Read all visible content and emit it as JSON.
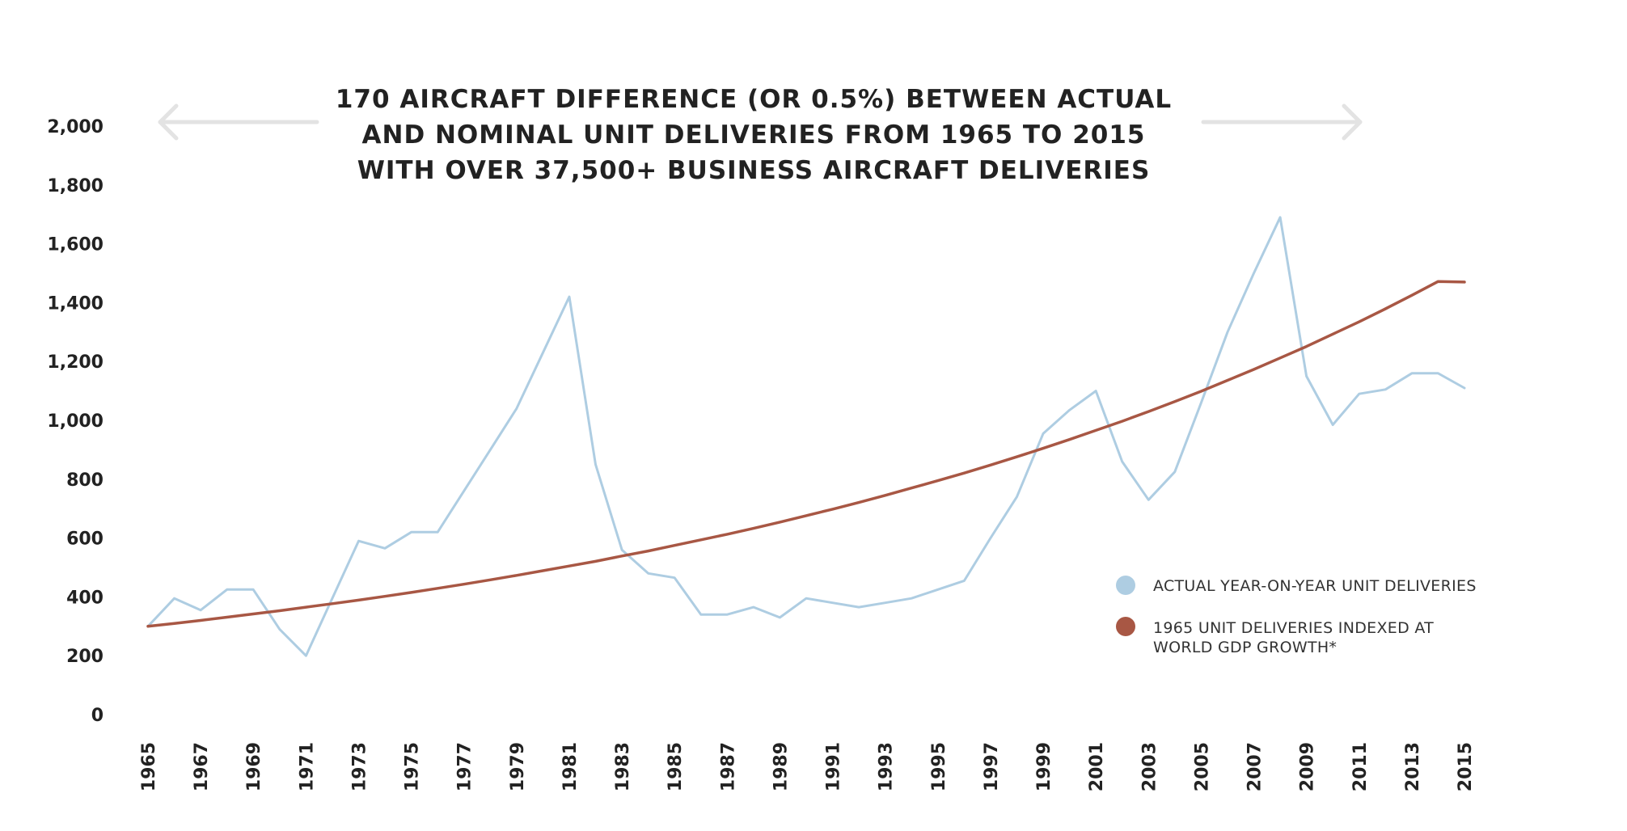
{
  "chart_data": {
    "type": "line",
    "title_lines": [
      "170 AIRCRAFT DIFFERENCE (OR 0.5%) BETWEEN ACTUAL",
      "AND NOMINAL UNIT DELIVERIES FROM 1965 TO 2015",
      "WITH OVER 37,500+ BUSINESS AIRCRAFT DELIVERIES"
    ],
    "xlabel": "",
    "ylabel": "",
    "ylim": [
      0,
      2000
    ],
    "yticks": [
      0,
      200,
      400,
      600,
      800,
      1000,
      1200,
      1400,
      1600,
      1800,
      2000
    ],
    "ytick_labels": [
      "0",
      "200",
      "400",
      "600",
      "800",
      "1,000",
      "1,200",
      "1,400",
      "1,600",
      "1,800",
      "2,000"
    ],
    "xlim": [
      1965,
      2015
    ],
    "xtick_labels": [
      "1965",
      "1967",
      "1969",
      "1971",
      "1973",
      "1975",
      "1977",
      "1979",
      "1981",
      "1983",
      "1985",
      "1987",
      "1989",
      "1991",
      "1993",
      "1995",
      "1997",
      "1999",
      "2001",
      "2003",
      "2005",
      "2007",
      "2009",
      "2011",
      "2013",
      "2015"
    ],
    "x": [
      1965,
      1966,
      1967,
      1968,
      1969,
      1970,
      1971,
      1972,
      1973,
      1974,
      1975,
      1976,
      1977,
      1978,
      1979,
      1980,
      1981,
      1982,
      1983,
      1984,
      1985,
      1986,
      1987,
      1988,
      1989,
      1990,
      1991,
      1992,
      1993,
      1994,
      1995,
      1996,
      1997,
      1998,
      1999,
      2000,
      2001,
      2002,
      2003,
      2004,
      2005,
      2006,
      2007,
      2008,
      2009,
      2010,
      2011,
      2012,
      2013,
      2014,
      2015
    ],
    "series": [
      {
        "name": "ACTUAL YEAR-ON-YEAR UNIT DELIVERIES",
        "color": "#aecde2",
        "values": [
          300,
          395,
          355,
          425,
          425,
          290,
          200,
          395,
          590,
          565,
          620,
          620,
          760,
          900,
          1040,
          1230,
          1420,
          850,
          560,
          480,
          465,
          340,
          340,
          365,
          330,
          395,
          380,
          365,
          380,
          395,
          425,
          455,
          600,
          740,
          955,
          1035,
          1100,
          860,
          730,
          825,
          1060,
          1300,
          1500,
          1690,
          1150,
          985,
          1090,
          1105,
          1160,
          1160,
          1110
        ]
      },
      {
        "name": "1965 UNIT DELIVERIES INDEXED AT WORLD GDP GROWTH*",
        "color": "#a85744",
        "start_value": 300,
        "end_value": 1470,
        "values": [
          300,
          310,
          320,
          331,
          342,
          353,
          365,
          377,
          389,
          402,
          415,
          429,
          443,
          458,
          473,
          489,
          505,
          521,
          539,
          556,
          575,
          594,
          613,
          633,
          654,
          676,
          698,
          721,
          745,
          770,
          795,
          821,
          848,
          876,
          905,
          935,
          966,
          997,
          1030,
          1064,
          1099,
          1136,
          1173,
          1212,
          1251,
          1293,
          1335,
          1379,
          1425,
          1472,
          1470
        ]
      }
    ],
    "legend": [
      {
        "label": "ACTUAL YEAR-ON-YEAR UNIT DELIVERIES",
        "color": "#aecde2"
      },
      {
        "label_lines": [
          "1965 UNIT DELIVERIES INDEXED AT",
          "WORLD GDP GROWTH*"
        ],
        "color": "#a85744"
      }
    ],
    "legend_position": "bottom-right",
    "grid": false,
    "decoration_color": "#e3e3e3"
  }
}
